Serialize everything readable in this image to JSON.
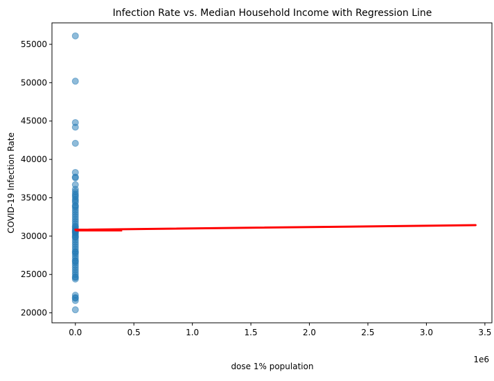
{
  "chart_data": {
    "type": "scatter",
    "title": "Infection Rate vs. Median Household Income with Regression Line",
    "xlabel": "dose 1% population",
    "ylabel": "COVID-19 Infection Rate",
    "x_offset_label": "1e6",
    "xlim": [
      -200000,
      3560000
    ],
    "ylim": [
      18700,
      57800
    ],
    "xticks": [
      0,
      500000,
      1000000,
      1500000,
      2000000,
      2500000,
      3000000,
      3500000
    ],
    "xtick_labels": [
      "0.0",
      "0.5",
      "1.0",
      "1.5",
      "2.0",
      "2.5",
      "3.0",
      "3.5"
    ],
    "yticks": [
      20000,
      25000,
      30000,
      35000,
      40000,
      45000,
      50000,
      55000
    ],
    "ytick_labels": [
      "20000",
      "25000",
      "30000",
      "35000",
      "40000",
      "45000",
      "50000",
      "55000"
    ],
    "grid": false,
    "series": [
      {
        "kind": "points",
        "color": "#1f77b4",
        "alpha": 0.5,
        "x": [
          0,
          0,
          0,
          0,
          0,
          0,
          0,
          0,
          0,
          0,
          0,
          0,
          0,
          0,
          0,
          0,
          0,
          0,
          0,
          0,
          0,
          0,
          0,
          0,
          0,
          0,
          0,
          0,
          0,
          0,
          0,
          0,
          0,
          0,
          0,
          0,
          0,
          0,
          0,
          0,
          0,
          0,
          0,
          0,
          0,
          0,
          0,
          0,
          0,
          0,
          0,
          0,
          0,
          0,
          0,
          0,
          0,
          0,
          0,
          0,
          0,
          0,
          0,
          0,
          0
        ],
        "y": [
          56100,
          50200,
          44800,
          44200,
          42100,
          38300,
          37700,
          37600,
          36700,
          36100,
          35800,
          35500,
          35100,
          34800,
          34400,
          34000,
          33700,
          33400,
          33100,
          32800,
          32500,
          32200,
          31900,
          31600,
          31300,
          31000,
          30800,
          30600,
          30400,
          30200,
          30000,
          29800,
          29500,
          29200,
          28900,
          28600,
          28300,
          28000,
          27700,
          27400,
          27100,
          26800,
          26500,
          26200,
          25900,
          25600,
          25300,
          25000,
          24700,
          24400,
          22300,
          22000,
          21900,
          21600,
          20400,
          30700,
          31200,
          33900,
          29900,
          27900,
          26700,
          34600,
          35300,
          24600,
          30500
        ]
      },
      {
        "kind": "regression",
        "color": "#ff0000",
        "x": [
          0,
          3420000
        ],
        "y": [
          30830,
          31430
        ]
      }
    ]
  }
}
